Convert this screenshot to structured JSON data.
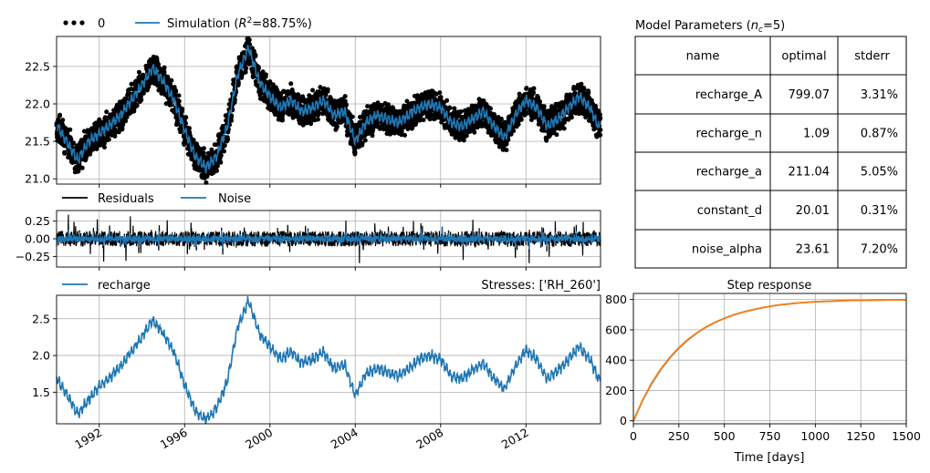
{
  "chart_data": [
    {
      "type": "line",
      "panel": "head",
      "series": [
        {
          "name": "0",
          "style": "dots",
          "color": "#000000"
        },
        {
          "name": "Simulation",
          "r2_label": "88.75%",
          "color": "#1f77b4"
        }
      ],
      "x_range": [
        "1990-01-01",
        "2015-06-30"
      ],
      "ylim": [
        20.93,
        22.9
      ],
      "yticks": [
        "21.0",
        "21.5",
        "22.0",
        "22.5"
      ],
      "x": [
        1990.0,
        1990.5,
        1991.0,
        1991.5,
        1992.0,
        1992.5,
        1993.0,
        1993.5,
        1994.0,
        1994.5,
        1995.0,
        1995.5,
        1996.0,
        1996.5,
        1997.0,
        1997.5,
        1998.0,
        1998.5,
        1999.0,
        1999.5,
        2000.0,
        2000.5,
        2001.0,
        2001.5,
        2002.0,
        2002.5,
        2003.0,
        2003.5,
        2004.0,
        2004.5,
        2005.0,
        2005.5,
        2006.0,
        2006.5,
        2007.0,
        2007.5,
        2008.0,
        2008.5,
        2009.0,
        2009.5,
        2010.0,
        2010.5,
        2011.0,
        2011.5,
        2012.0,
        2012.5,
        2013.0,
        2013.5,
        2014.0,
        2014.5,
        2015.0,
        2015.4
      ],
      "values": [
        21.72,
        21.48,
        21.25,
        21.5,
        21.6,
        21.72,
        21.85,
        22.05,
        22.25,
        22.48,
        22.3,
        22.05,
        21.65,
        21.3,
        21.15,
        21.3,
        21.7,
        22.4,
        22.75,
        22.3,
        22.1,
        21.95,
        22.05,
        21.9,
        21.95,
        22.05,
        21.85,
        21.9,
        21.5,
        21.75,
        21.85,
        21.8,
        21.75,
        21.85,
        21.95,
        22.0,
        21.95,
        21.75,
        21.7,
        21.8,
        21.9,
        21.7,
        21.55,
        21.85,
        22.05,
        21.95,
        21.7,
        21.8,
        21.95,
        22.1,
        21.95,
        21.7
      ]
    },
    {
      "type": "line",
      "panel": "residuals",
      "series": [
        {
          "name": "Residuals",
          "color": "#000000"
        },
        {
          "name": "Noise",
          "color": "#1f77b4"
        }
      ],
      "ylim": [
        -0.4,
        0.4
      ],
      "yticks": [
        "0.25",
        "0.00",
        "−0.25"
      ]
    },
    {
      "type": "line",
      "panel": "contributions",
      "title": "Stresses: ['RH_260']",
      "series": [
        {
          "name": "recharge",
          "color": "#1f77b4"
        }
      ],
      "ylim": [
        1.07,
        2.82
      ],
      "yticks": [
        "1.5",
        "2.0",
        "2.5"
      ],
      "xticks": [
        "1992",
        "1996",
        "2000",
        "2004",
        "2008",
        "2012"
      ],
      "xtick_years": [
        1992,
        1996,
        2000,
        2004,
        2008,
        2012
      ],
      "x": [
        1990.0,
        1990.5,
        1991.0,
        1991.5,
        1992.0,
        1992.5,
        1993.0,
        1993.5,
        1994.0,
        1994.5,
        1995.0,
        1995.5,
        1996.0,
        1996.5,
        1997.0,
        1997.5,
        1998.0,
        1998.5,
        1999.0,
        1999.5,
        2000.0,
        2000.5,
        2001.0,
        2001.5,
        2002.0,
        2002.5,
        2003.0,
        2003.5,
        2004.0,
        2004.5,
        2005.0,
        2005.5,
        2006.0,
        2006.5,
        2007.0,
        2007.5,
        2008.0,
        2008.5,
        2009.0,
        2009.5,
        2010.0,
        2010.5,
        2011.0,
        2011.5,
        2012.0,
        2012.5,
        2013.0,
        2013.5,
        2014.0,
        2014.5,
        2015.0,
        2015.4
      ],
      "values": [
        1.7,
        1.45,
        1.2,
        1.4,
        1.58,
        1.7,
        1.85,
        2.05,
        2.25,
        2.48,
        2.3,
        2.05,
        1.6,
        1.25,
        1.12,
        1.28,
        1.65,
        2.4,
        2.75,
        2.3,
        2.12,
        1.95,
        2.05,
        1.9,
        1.95,
        2.05,
        1.82,
        1.88,
        1.45,
        1.75,
        1.82,
        1.78,
        1.72,
        1.82,
        1.95,
        2.0,
        1.95,
        1.72,
        1.68,
        1.8,
        1.9,
        1.68,
        1.55,
        1.85,
        2.08,
        1.95,
        1.68,
        1.8,
        1.95,
        2.12,
        1.95,
        1.68
      ]
    },
    {
      "type": "line",
      "panel": "step_response",
      "title": "Step response",
      "xlabel": "Time [days]",
      "xlim": [
        0,
        1500
      ],
      "ylim": [
        -20,
        840
      ],
      "xticks": [
        0,
        250,
        500,
        750,
        1000,
        1250,
        1500
      ],
      "yticks": [
        0,
        200,
        400,
        600,
        800
      ],
      "x": [
        0,
        50,
        100,
        150,
        200,
        250,
        300,
        350,
        400,
        450,
        500,
        550,
        600,
        650,
        700,
        750,
        800,
        900,
        1000,
        1100,
        1200,
        1300,
        1400,
        1500
      ],
      "series": [
        {
          "color": "#1f77b4",
          "values": [
            0,
            133,
            244,
            337,
            415,
            480,
            534,
            580,
            618,
            650,
            676,
            698,
            716,
            731,
            744,
            755,
            764,
            777,
            785,
            790,
            794,
            796,
            797,
            798
          ]
        },
        {
          "color": "#ff7f0e",
          "values": [
            0,
            136,
            248,
            341,
            418,
            483,
            536,
            581,
            619,
            650,
            676,
            698,
            716,
            731,
            744,
            755,
            764,
            777,
            785,
            790,
            794,
            796,
            797,
            798
          ]
        }
      ]
    }
  ],
  "table": {
    "title_prefix": "Model Parameters (",
    "title_symbol": "n",
    "title_sub": "c",
    "title_suffix": "=5)",
    "headers": [
      "name",
      "optimal",
      "stderr"
    ],
    "rows": [
      [
        "recharge_A",
        "799.07",
        "3.31%"
      ],
      [
        "recharge_n",
        "1.09",
        "0.87%"
      ],
      [
        "recharge_a",
        "211.04",
        "5.05%"
      ],
      [
        "constant_d",
        "20.01",
        "0.31%"
      ],
      [
        "noise_alpha",
        "23.61",
        "7.20%"
      ]
    ]
  },
  "legend": {
    "r2_prefix": "Simulation (",
    "r2_symbol": "R",
    "r2_sup": "2",
    "r2_suffix": "=88.75%)"
  }
}
